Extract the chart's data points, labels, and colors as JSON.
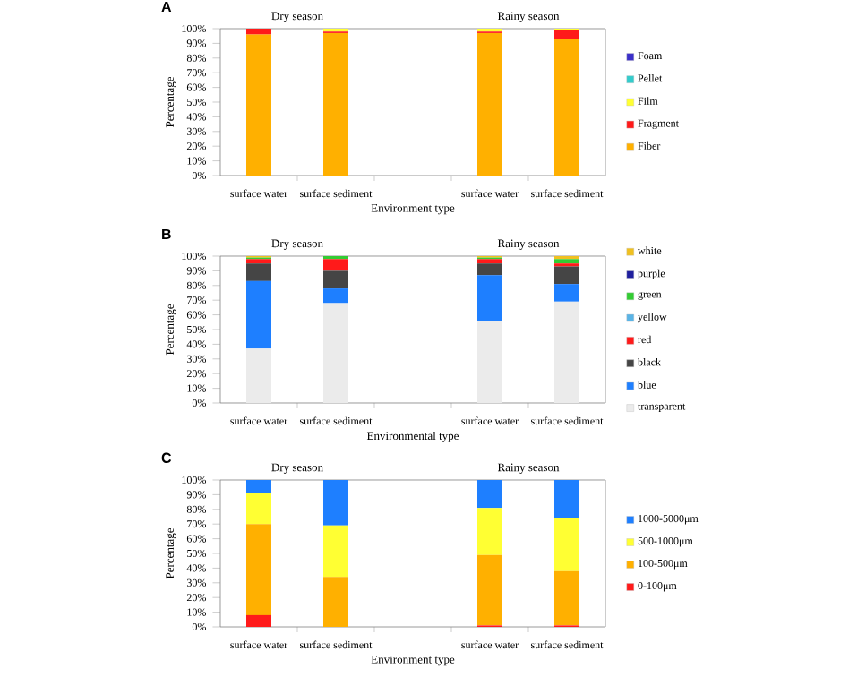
{
  "chart_data": [
    {
      "type": "bar",
      "stacked": true,
      "title": "A",
      "xlabel": "Environment type",
      "ylabel": "Percentage",
      "annotations": [
        "Dry season",
        "Rainy season"
      ],
      "categories": [
        "surface water",
        "surface sediment",
        null,
        "surface water",
        "surface sediment"
      ],
      "series": [
        {
          "name": "Fiber",
          "color": "#ffb000",
          "values": [
            96,
            97,
            null,
            97,
            93
          ]
        },
        {
          "name": "Fragment",
          "color": "#ff1a1a",
          "values": [
            4,
            1,
            null,
            1,
            6
          ]
        },
        {
          "name": "Film",
          "color": "#ffff33",
          "values": [
            0,
            2,
            null,
            2,
            1
          ]
        },
        {
          "name": "Pellet",
          "color": "#33cccc",
          "values": [
            0,
            0,
            null,
            0,
            0
          ]
        },
        {
          "name": "Foam",
          "color": "#3b2fc9",
          "values": [
            0,
            0,
            null,
            0,
            0
          ]
        }
      ],
      "ylim": [
        0,
        100
      ],
      "yticks": [
        {
          "value": 0,
          "label": "0%"
        },
        {
          "value": 10,
          "label": "10%"
        },
        {
          "value": 20,
          "label": "20%"
        },
        {
          "value": 30,
          "label": "30%"
        },
        {
          "value": 40,
          "label": "40%"
        },
        {
          "value": 50,
          "label": "50%"
        },
        {
          "value": 60,
          "label": "60%"
        },
        {
          "value": 70,
          "label": "70%"
        },
        {
          "value": 80,
          "label": "80%"
        },
        {
          "value": 90,
          "label": "90%"
        },
        {
          "value": 100,
          "label": "100%"
        }
      ],
      "legend": "right"
    },
    {
      "type": "bar",
      "stacked": true,
      "title": "B",
      "xlabel": "Environmental type",
      "ylabel": "Percentage",
      "annotations": [
        "Dry season",
        "Rainy season"
      ],
      "categories": [
        "surface water",
        "surface sediment",
        null,
        "surface water",
        "surface sediment"
      ],
      "series": [
        {
          "name": "transparent",
          "color": "#ebebeb",
          "values": [
            37,
            68,
            null,
            56,
            69
          ]
        },
        {
          "name": "blue",
          "color": "#1e7fff",
          "values": [
            46,
            10,
            null,
            31,
            12
          ]
        },
        {
          "name": "black",
          "color": "#454545",
          "values": [
            12,
            12,
            null,
            8,
            12
          ]
        },
        {
          "name": "red",
          "color": "#ff1a1a",
          "values": [
            3,
            8,
            null,
            3,
            2
          ]
        },
        {
          "name": "yellow",
          "color": "#5ab4e6",
          "values": [
            0,
            0,
            null,
            0,
            0
          ]
        },
        {
          "name": "green",
          "color": "#33cc33",
          "values": [
            1,
            2,
            null,
            1,
            3
          ]
        },
        {
          "name": "purple",
          "color": "#1f1f9e",
          "values": [
            0,
            0,
            null,
            0,
            0
          ]
        },
        {
          "name": "white",
          "color": "#f0c020",
          "values": [
            1,
            0,
            null,
            1,
            2
          ]
        }
      ],
      "ylim": [
        0,
        100
      ],
      "yticks": [
        {
          "value": 0,
          "label": "0%"
        },
        {
          "value": 10,
          "label": "10%"
        },
        {
          "value": 20,
          "label": "20%"
        },
        {
          "value": 30,
          "label": "30%"
        },
        {
          "value": 40,
          "label": "40%"
        },
        {
          "value": 50,
          "label": "50%"
        },
        {
          "value": 60,
          "label": "60%"
        },
        {
          "value": 70,
          "label": "70%"
        },
        {
          "value": 80,
          "label": "80%"
        },
        {
          "value": 90,
          "label": "90%"
        },
        {
          "value": 100,
          "label": "100%"
        }
      ],
      "legend": "right"
    },
    {
      "type": "bar",
      "stacked": true,
      "title": "C",
      "xlabel": "Environment type",
      "ylabel": "Percentage",
      "annotations": [
        "Dry season",
        "Rainy season"
      ],
      "categories": [
        "surface water",
        "surface sediment",
        null,
        "surface water",
        "surface sediment"
      ],
      "series": [
        {
          "name": "0-100μm",
          "color": "#ff1a1a",
          "values": [
            8,
            0,
            null,
            1,
            1
          ]
        },
        {
          "name": "100-500μm",
          "color": "#ffb000",
          "values": [
            62,
            34,
            null,
            48,
            37
          ]
        },
        {
          "name": "500-1000μm",
          "color": "#ffff33",
          "values": [
            21,
            35,
            null,
            32,
            36
          ]
        },
        {
          "name": "1000-5000μm",
          "color": "#1e7fff",
          "values": [
            9,
            31,
            null,
            19,
            26
          ]
        }
      ],
      "ylim": [
        0,
        100
      ],
      "yticks": [
        {
          "value": 0,
          "label": "0%"
        },
        {
          "value": 10,
          "label": "10%"
        },
        {
          "value": 20,
          "label": "20%"
        },
        {
          "value": 30,
          "label": "30%"
        },
        {
          "value": 40,
          "label": "40%"
        },
        {
          "value": 50,
          "label": "50%"
        },
        {
          "value": 60,
          "label": "60%"
        },
        {
          "value": 70,
          "label": "70%"
        },
        {
          "value": 80,
          "label": "80%"
        },
        {
          "value": 90,
          "label": "90%"
        },
        {
          "value": 100,
          "label": "100%"
        }
      ],
      "legend": "right"
    }
  ]
}
